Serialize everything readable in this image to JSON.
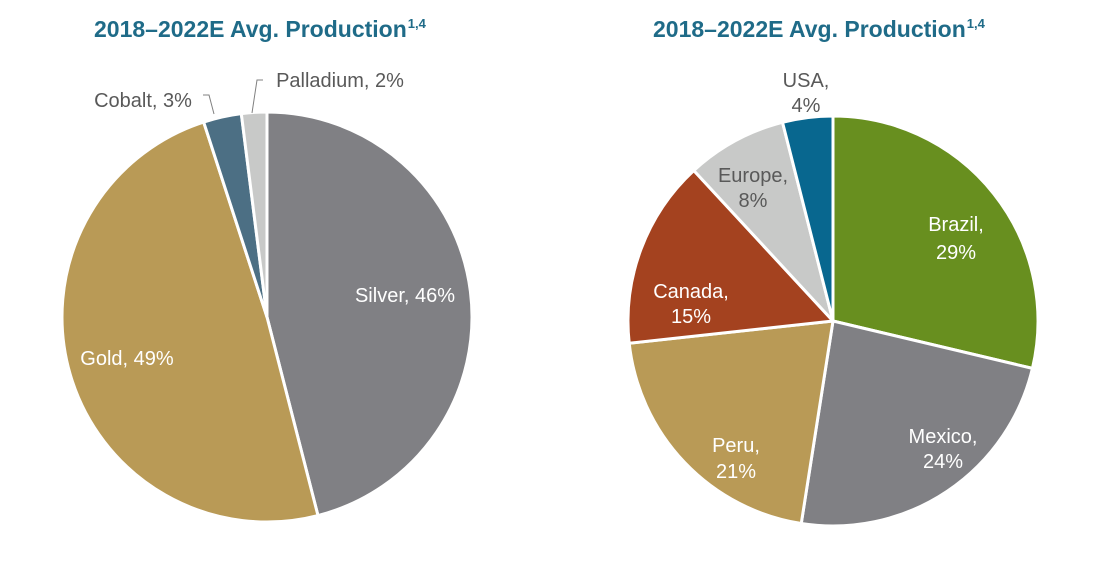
{
  "chart_data": [
    {
      "type": "pie",
      "title": "2018–2022E Avg. Production",
      "title_superscript": "1,4",
      "slices": [
        {
          "label": "Silver",
          "value": 46,
          "display": "Silver, 46%",
          "color": "#808084"
        },
        {
          "label": "Gold",
          "value": 49,
          "display": "Gold, 49%",
          "color": "#b99a56"
        },
        {
          "label": "Cobalt",
          "value": 3,
          "display": "Cobalt, 3%",
          "color": "#4c6f84"
        },
        {
          "label": "Palladium",
          "value": 2,
          "display": "Palladium, 2%",
          "color": "#c8c9c8"
        }
      ]
    },
    {
      "type": "pie",
      "title": "2018–2022E Avg. Production",
      "title_superscript": "1,4",
      "slices": [
        {
          "label": "Brazil",
          "value": 29,
          "display": [
            "Brazil,",
            "29%"
          ],
          "color": "#688f1f"
        },
        {
          "label": "Mexico",
          "value": 24,
          "display": [
            "Mexico,",
            "24%"
          ],
          "color": "#808084"
        },
        {
          "label": "Peru",
          "value": 21,
          "display": [
            "Peru,",
            "21%"
          ],
          "color": "#b99a56"
        },
        {
          "label": "Canada",
          "value": 15,
          "display": [
            "Canada,",
            "15%"
          ],
          "color": "#a4421f"
        },
        {
          "label": "Europe",
          "value": 8,
          "display": [
            "Europe,",
            "8%"
          ],
          "color": "#c8c9c8"
        },
        {
          "label": "USA",
          "value": 4,
          "display": [
            "USA,",
            "4%"
          ],
          "color": "#08678f"
        }
      ]
    }
  ]
}
